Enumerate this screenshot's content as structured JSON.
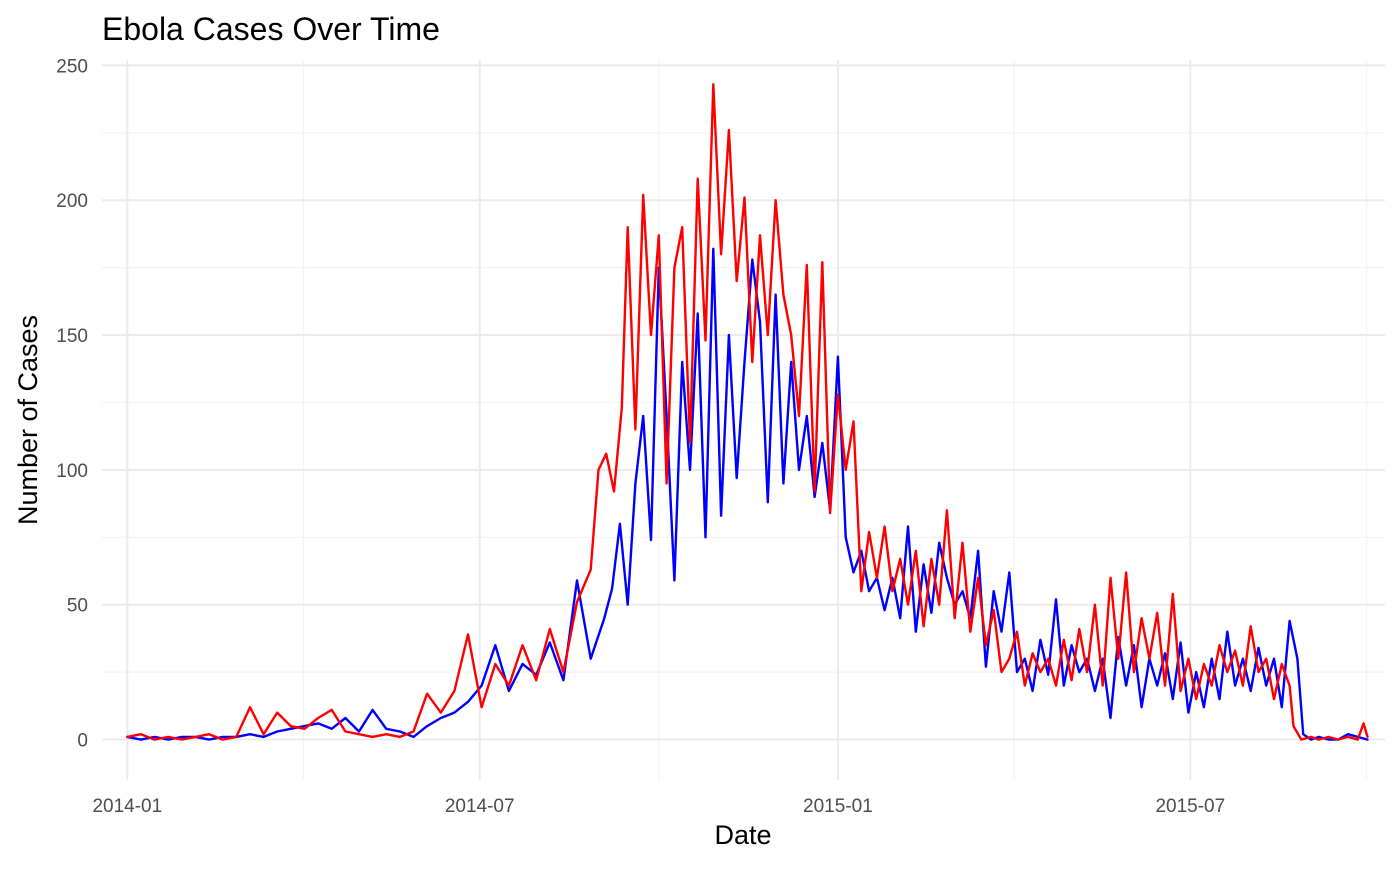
{
  "chart_data": {
    "type": "line",
    "title": "Ebola Cases Over Time",
    "xlabel": "Date",
    "ylabel": "Number of Cases",
    "x_ticks": [
      "2014-01",
      "2014-07",
      "2015-01",
      "2015-07"
    ],
    "x_range": [
      "2013-12-19",
      "2015-10-09"
    ],
    "y_ticks": [
      0,
      50,
      100,
      150,
      200,
      250
    ],
    "ylim": [
      -15,
      252
    ],
    "grid": true,
    "legend": "none",
    "series": [
      {
        "color": "#0000FF",
        "points": [
          [
            "2014-01-01",
            1
          ],
          [
            "2014-01-08",
            0
          ],
          [
            "2014-01-15",
            1
          ],
          [
            "2014-01-22",
            0
          ],
          [
            "2014-01-29",
            1
          ],
          [
            "2014-02-05",
            1
          ],
          [
            "2014-02-12",
            0
          ],
          [
            "2014-02-19",
            1
          ],
          [
            "2014-02-26",
            1
          ],
          [
            "2014-03-05",
            2
          ],
          [
            "2014-03-12",
            1
          ],
          [
            "2014-03-19",
            3
          ],
          [
            "2014-03-26",
            4
          ],
          [
            "2014-04-02",
            5
          ],
          [
            "2014-04-09",
            6
          ],
          [
            "2014-04-16",
            4
          ],
          [
            "2014-04-23",
            8
          ],
          [
            "2014-04-30",
            3
          ],
          [
            "2014-05-07",
            11
          ],
          [
            "2014-05-14",
            4
          ],
          [
            "2014-05-21",
            3
          ],
          [
            "2014-05-28",
            1
          ],
          [
            "2014-06-04",
            5
          ],
          [
            "2014-06-11",
            8
          ],
          [
            "2014-06-18",
            10
          ],
          [
            "2014-06-25",
            14
          ],
          [
            "2014-07-02",
            20
          ],
          [
            "2014-07-09",
            35
          ],
          [
            "2014-07-16",
            18
          ],
          [
            "2014-07-23",
            28
          ],
          [
            "2014-07-30",
            24
          ],
          [
            "2014-08-06",
            36
          ],
          [
            "2014-08-13",
            22
          ],
          [
            "2014-08-20",
            59
          ],
          [
            "2014-08-27",
            30
          ],
          [
            "2014-09-03",
            45
          ],
          [
            "2014-09-07",
            56
          ],
          [
            "2014-09-11",
            80
          ],
          [
            "2014-09-15",
            50
          ],
          [
            "2014-09-19",
            95
          ],
          [
            "2014-09-23",
            120
          ],
          [
            "2014-09-27",
            74
          ],
          [
            "2014-10-01",
            175
          ],
          [
            "2014-10-05",
            120
          ],
          [
            "2014-10-09",
            59
          ],
          [
            "2014-10-13",
            140
          ],
          [
            "2014-10-17",
            100
          ],
          [
            "2014-10-21",
            158
          ],
          [
            "2014-10-25",
            75
          ],
          [
            "2014-10-29",
            182
          ],
          [
            "2014-11-02",
            83
          ],
          [
            "2014-11-06",
            150
          ],
          [
            "2014-11-10",
            97
          ],
          [
            "2014-11-14",
            140
          ],
          [
            "2014-11-18",
            178
          ],
          [
            "2014-11-22",
            155
          ],
          [
            "2014-11-26",
            88
          ],
          [
            "2014-11-30",
            165
          ],
          [
            "2014-12-04",
            95
          ],
          [
            "2014-12-08",
            140
          ],
          [
            "2014-12-12",
            100
          ],
          [
            "2014-12-16",
            120
          ],
          [
            "2014-12-20",
            90
          ],
          [
            "2014-12-24",
            110
          ],
          [
            "2014-12-28",
            85
          ],
          [
            "2015-01-01",
            142
          ],
          [
            "2015-01-05",
            75
          ],
          [
            "2015-01-09",
            62
          ],
          [
            "2015-01-13",
            70
          ],
          [
            "2015-01-17",
            55
          ],
          [
            "2015-01-21",
            60
          ],
          [
            "2015-01-25",
            48
          ],
          [
            "2015-01-29",
            60
          ],
          [
            "2015-02-02",
            45
          ],
          [
            "2015-02-06",
            79
          ],
          [
            "2015-02-10",
            40
          ],
          [
            "2015-02-14",
            65
          ],
          [
            "2015-02-18",
            47
          ],
          [
            "2015-02-22",
            73
          ],
          [
            "2015-02-26",
            60
          ],
          [
            "2015-03-02",
            50
          ],
          [
            "2015-03-06",
            55
          ],
          [
            "2015-03-10",
            45
          ],
          [
            "2015-03-14",
            70
          ],
          [
            "2015-03-18",
            27
          ],
          [
            "2015-03-22",
            55
          ],
          [
            "2015-03-26",
            40
          ],
          [
            "2015-03-30",
            62
          ],
          [
            "2015-04-03",
            25
          ],
          [
            "2015-04-07",
            30
          ],
          [
            "2015-04-11",
            18
          ],
          [
            "2015-04-15",
            37
          ],
          [
            "2015-04-19",
            24
          ],
          [
            "2015-04-23",
            52
          ],
          [
            "2015-04-27",
            20
          ],
          [
            "2015-05-01",
            35
          ],
          [
            "2015-05-05",
            25
          ],
          [
            "2015-05-09",
            30
          ],
          [
            "2015-05-13",
            18
          ],
          [
            "2015-05-17",
            30
          ],
          [
            "2015-05-21",
            8
          ],
          [
            "2015-05-25",
            38
          ],
          [
            "2015-05-29",
            20
          ],
          [
            "2015-06-02",
            35
          ],
          [
            "2015-06-06",
            12
          ],
          [
            "2015-06-10",
            30
          ],
          [
            "2015-06-14",
            20
          ],
          [
            "2015-06-18",
            32
          ],
          [
            "2015-06-22",
            15
          ],
          [
            "2015-06-26",
            36
          ],
          [
            "2015-06-30",
            10
          ],
          [
            "2015-07-04",
            25
          ],
          [
            "2015-07-08",
            12
          ],
          [
            "2015-07-12",
            30
          ],
          [
            "2015-07-16",
            15
          ],
          [
            "2015-07-20",
            40
          ],
          [
            "2015-07-24",
            20
          ],
          [
            "2015-07-28",
            30
          ],
          [
            "2015-08-01",
            18
          ],
          [
            "2015-08-05",
            34
          ],
          [
            "2015-08-09",
            20
          ],
          [
            "2015-08-13",
            30
          ],
          [
            "2015-08-17",
            12
          ],
          [
            "2015-08-21",
            44
          ],
          [
            "2015-08-25",
            30
          ],
          [
            "2015-08-28",
            2
          ],
          [
            "2015-09-01",
            0
          ],
          [
            "2015-09-05",
            1
          ],
          [
            "2015-09-10",
            0
          ],
          [
            "2015-09-15",
            0
          ],
          [
            "2015-09-20",
            2
          ],
          [
            "2015-09-25",
            1
          ],
          [
            "2015-09-30",
            0
          ]
        ]
      },
      {
        "color": "#FF0000",
        "points": [
          [
            "2014-01-01",
            1
          ],
          [
            "2014-01-08",
            2
          ],
          [
            "2014-01-15",
            0
          ],
          [
            "2014-01-22",
            1
          ],
          [
            "2014-01-29",
            0
          ],
          [
            "2014-02-05",
            1
          ],
          [
            "2014-02-12",
            2
          ],
          [
            "2014-02-19",
            0
          ],
          [
            "2014-02-26",
            1
          ],
          [
            "2014-03-05",
            12
          ],
          [
            "2014-03-12",
            2
          ],
          [
            "2014-03-19",
            10
          ],
          [
            "2014-03-26",
            5
          ],
          [
            "2014-04-02",
            4
          ],
          [
            "2014-04-09",
            8
          ],
          [
            "2014-04-16",
            11
          ],
          [
            "2014-04-23",
            3
          ],
          [
            "2014-04-30",
            2
          ],
          [
            "2014-05-07",
            1
          ],
          [
            "2014-05-14",
            2
          ],
          [
            "2014-05-21",
            1
          ],
          [
            "2014-05-28",
            3
          ],
          [
            "2014-06-04",
            17
          ],
          [
            "2014-06-11",
            10
          ],
          [
            "2014-06-18",
            18
          ],
          [
            "2014-06-25",
            39
          ],
          [
            "2014-07-02",
            12
          ],
          [
            "2014-07-09",
            28
          ],
          [
            "2014-07-16",
            20
          ],
          [
            "2014-07-23",
            35
          ],
          [
            "2014-07-30",
            22
          ],
          [
            "2014-08-06",
            41
          ],
          [
            "2014-08-13",
            25
          ],
          [
            "2014-08-20",
            51
          ],
          [
            "2014-08-27",
            63
          ],
          [
            "2014-08-31",
            100
          ],
          [
            "2014-09-04",
            106
          ],
          [
            "2014-09-08",
            92
          ],
          [
            "2014-09-12",
            123
          ],
          [
            "2014-09-15",
            190
          ],
          [
            "2014-09-19",
            115
          ],
          [
            "2014-09-23",
            202
          ],
          [
            "2014-09-27",
            150
          ],
          [
            "2014-10-01",
            187
          ],
          [
            "2014-10-05",
            95
          ],
          [
            "2014-10-09",
            175
          ],
          [
            "2014-10-13",
            190
          ],
          [
            "2014-10-17",
            110
          ],
          [
            "2014-10-21",
            208
          ],
          [
            "2014-10-25",
            148
          ],
          [
            "2014-10-29",
            243
          ],
          [
            "2014-11-02",
            180
          ],
          [
            "2014-11-06",
            226
          ],
          [
            "2014-11-10",
            170
          ],
          [
            "2014-11-14",
            201
          ],
          [
            "2014-11-18",
            140
          ],
          [
            "2014-11-22",
            187
          ],
          [
            "2014-11-26",
            150
          ],
          [
            "2014-11-30",
            200
          ],
          [
            "2014-12-04",
            165
          ],
          [
            "2014-12-08",
            150
          ],
          [
            "2014-12-12",
            120
          ],
          [
            "2014-12-16",
            176
          ],
          [
            "2014-12-20",
            92
          ],
          [
            "2014-12-24",
            177
          ],
          [
            "2014-12-28",
            84
          ],
          [
            "2015-01-01",
            128
          ],
          [
            "2015-01-05",
            100
          ],
          [
            "2015-01-09",
            118
          ],
          [
            "2015-01-13",
            55
          ],
          [
            "2015-01-17",
            77
          ],
          [
            "2015-01-21",
            60
          ],
          [
            "2015-01-25",
            79
          ],
          [
            "2015-01-29",
            55
          ],
          [
            "2015-02-02",
            67
          ],
          [
            "2015-02-06",
            50
          ],
          [
            "2015-02-10",
            70
          ],
          [
            "2015-02-14",
            42
          ],
          [
            "2015-02-18",
            67
          ],
          [
            "2015-02-22",
            50
          ],
          [
            "2015-02-26",
            85
          ],
          [
            "2015-03-02",
            45
          ],
          [
            "2015-03-06",
            73
          ],
          [
            "2015-03-10",
            40
          ],
          [
            "2015-03-14",
            60
          ],
          [
            "2015-03-18",
            35
          ],
          [
            "2015-03-22",
            48
          ],
          [
            "2015-03-26",
            25
          ],
          [
            "2015-03-30",
            30
          ],
          [
            "2015-04-03",
            40
          ],
          [
            "2015-04-07",
            20
          ],
          [
            "2015-04-11",
            32
          ],
          [
            "2015-04-15",
            25
          ],
          [
            "2015-04-19",
            30
          ],
          [
            "2015-04-23",
            20
          ],
          [
            "2015-04-27",
            37
          ],
          [
            "2015-05-01",
            22
          ],
          [
            "2015-05-05",
            41
          ],
          [
            "2015-05-09",
            25
          ],
          [
            "2015-05-13",
            50
          ],
          [
            "2015-05-17",
            20
          ],
          [
            "2015-05-21",
            60
          ],
          [
            "2015-05-25",
            30
          ],
          [
            "2015-05-29",
            62
          ],
          [
            "2015-06-02",
            25
          ],
          [
            "2015-06-06",
            45
          ],
          [
            "2015-06-10",
            30
          ],
          [
            "2015-06-14",
            47
          ],
          [
            "2015-06-18",
            20
          ],
          [
            "2015-06-22",
            54
          ],
          [
            "2015-06-26",
            18
          ],
          [
            "2015-06-30",
            30
          ],
          [
            "2015-07-04",
            15
          ],
          [
            "2015-07-08",
            28
          ],
          [
            "2015-07-12",
            20
          ],
          [
            "2015-07-16",
            35
          ],
          [
            "2015-07-20",
            25
          ],
          [
            "2015-07-24",
            33
          ],
          [
            "2015-07-28",
            20
          ],
          [
            "2015-08-01",
            42
          ],
          [
            "2015-08-05",
            25
          ],
          [
            "2015-08-09",
            30
          ],
          [
            "2015-08-13",
            15
          ],
          [
            "2015-08-17",
            28
          ],
          [
            "2015-08-21",
            20
          ],
          [
            "2015-08-23",
            5
          ],
          [
            "2015-08-27",
            0
          ],
          [
            "2015-09-01",
            1
          ],
          [
            "2015-09-05",
            0
          ],
          [
            "2015-09-10",
            1
          ],
          [
            "2015-09-15",
            0
          ],
          [
            "2015-09-20",
            1
          ],
          [
            "2015-09-25",
            0
          ],
          [
            "2015-09-28",
            6
          ],
          [
            "2015-09-30",
            1
          ]
        ]
      }
    ]
  }
}
